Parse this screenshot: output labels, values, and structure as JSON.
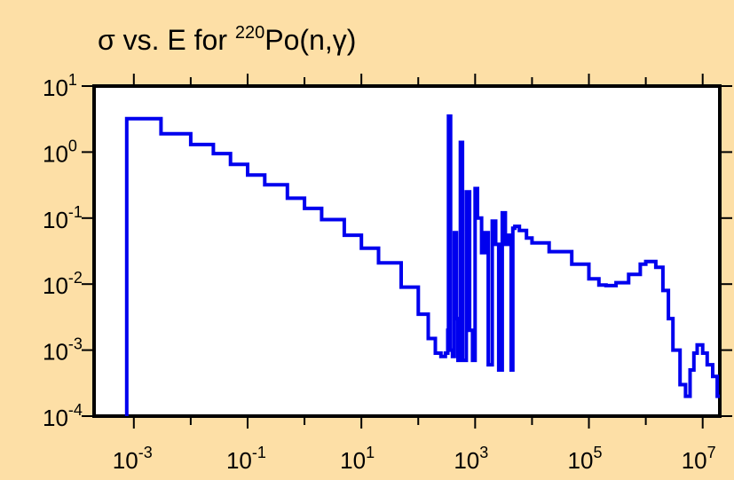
{
  "chart_data": {
    "type": "line",
    "title": {
      "prefix": "σ vs. E for ",
      "superscript": "220",
      "element": "Po(n,",
      "gamma": "γ",
      "suffix": ")"
    },
    "xscale": "log",
    "yscale": "log",
    "xlim": [
      0.0002,
      20000000
    ],
    "ylim": [
      0.0001,
      10
    ],
    "x_ticks": [
      {
        "value": 0.001,
        "base": "10",
        "exp": "-3"
      },
      {
        "value": 0.1,
        "base": "10",
        "exp": "-1"
      },
      {
        "value": 10,
        "base": "10",
        "exp": "1"
      },
      {
        "value": 1000,
        "base": "10",
        "exp": "3"
      },
      {
        "value": 100000,
        "base": "10",
        "exp": "5"
      },
      {
        "value": 10000000,
        "base": "10",
        "exp": "7"
      }
    ],
    "y_ticks": [
      {
        "value": 10,
        "base": "10",
        "exp": "1"
      },
      {
        "value": 1,
        "base": "10",
        "exp": "0"
      },
      {
        "value": 0.1,
        "base": "10",
        "exp": "-1"
      },
      {
        "value": 0.01,
        "base": "10",
        "exp": "-2"
      },
      {
        "value": 0.001,
        "base": "10",
        "exp": "-3"
      },
      {
        "value": 0.0001,
        "base": "10",
        "exp": "-4"
      }
    ],
    "grid": false,
    "legend": "none",
    "line_color": "#0000ee",
    "step": true,
    "series": [
      {
        "x": [
          0.00075,
          0.00075,
          0.003,
          0.01,
          0.025,
          0.05,
          0.1,
          0.2,
          0.5,
          1,
          2,
          5,
          10,
          20,
          50,
          100,
          150,
          200,
          250,
          300,
          330,
          340,
          370,
          400,
          430,
          470,
          500,
          550,
          600,
          700,
          800,
          900,
          1000,
          1100,
          1300,
          1500,
          1700,
          2000,
          2300,
          2600,
          3000,
          3400,
          3900,
          4300,
          4600,
          5000,
          6000,
          8000,
          10000,
          20000,
          50000,
          100000,
          150000,
          200000,
          300000,
          500000,
          800000,
          1000000,
          1500000,
          2000000,
          2500000,
          3000000,
          4000000,
          5000000,
          6000000,
          7000000,
          8000000,
          10000000,
          12000000,
          15000000,
          18000000
        ],
        "y": [
          0.0001,
          3.2,
          1.9,
          1.3,
          0.95,
          0.65,
          0.45,
          0.32,
          0.2,
          0.14,
          0.095,
          0.055,
          0.035,
          0.021,
          0.009,
          0.0035,
          0.0015,
          0.0009,
          0.0008,
          0.0009,
          0.002,
          3.5,
          0.001,
          0.0008,
          0.06,
          0.003,
          0.0007,
          1.4,
          0.0007,
          0.25,
          0.002,
          0.0007,
          0.28,
          0.1,
          0.03,
          0.06,
          0.0006,
          0.09,
          0.04,
          0.0005,
          0.12,
          0.04,
          0.055,
          0.0005,
          0.07,
          0.075,
          0.065,
          0.05,
          0.042,
          0.031,
          0.02,
          0.012,
          0.0097,
          0.0095,
          0.0105,
          0.014,
          0.02,
          0.022,
          0.018,
          0.008,
          0.003,
          0.001,
          0.0003,
          0.0002,
          0.0005,
          0.0009,
          0.0012,
          0.0009,
          0.0006,
          0.0004,
          0.0002
        ]
      }
    ]
  }
}
